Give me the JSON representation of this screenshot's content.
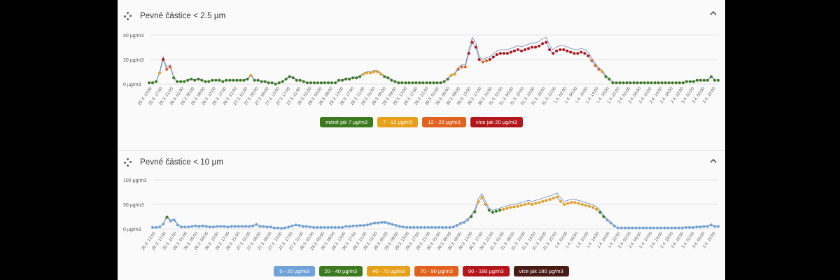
{
  "charts": [
    {
      "id": "pm25",
      "title": "Pevné částice < 2.5 µm",
      "icon": "scatter-dots-icon",
      "collapse_icon": "chevron-up-icon",
      "legend": [
        {
          "label": "méně jak 7 µg/m3",
          "color": "#3d7a1f"
        },
        {
          "label": "7 - 12 µg/m3",
          "color": "#e6a019"
        },
        {
          "label": "12 - 20 µg/m3",
          "color": "#e0621e"
        },
        {
          "label": "více jak 20 µg/m3",
          "color": "#b3171b"
        }
      ]
    },
    {
      "id": "pm10",
      "title": "Pevné částice < 10 µm",
      "icon": "scatter-dots-icon",
      "collapse_icon": "chevron-up-icon",
      "legend": [
        {
          "label": "0 - 20 µg/m3",
          "color": "#6fa3d8"
        },
        {
          "label": "20 - 40 µg/m3",
          "color": "#3d7a1f"
        },
        {
          "label": "40 - 70 µg/m3",
          "color": "#e6a019"
        },
        {
          "label": "70 - 90 µg/m3",
          "color": "#e0621e"
        },
        {
          "label": "90 - 180 µg/m3",
          "color": "#b3171b"
        },
        {
          "label": "více jak 180 µg/m3",
          "color": "#4a1a14"
        }
      ]
    }
  ],
  "chart_data": [
    {
      "type": "line",
      "title": "Pevné částice < 2.5 µm",
      "xlabel": "",
      "ylabel": "",
      "yticks": [
        "0 µg/m3",
        "20 µg/m3",
        "40 µg/m3"
      ],
      "ylim": [
        0,
        40
      ],
      "x_labels": [
        "25.3. 13:00",
        "25.3. 17:00",
        "25.3. 21:00",
        "26.3. 01:00",
        "26.3. 05:00",
        "26.3. 09:00",
        "26.3. 13:00",
        "26.3. 17:00",
        "26.3. 21:00",
        "27.3. 01:00",
        "27.3. 05:00",
        "27.3. 09:00",
        "27.3. 13:00",
        "27.3. 17:00",
        "27.3. 21:00",
        "28.3. 01:00",
        "28.3. 05:00",
        "28.3. 09:00",
        "28.3. 13:00",
        "28.3. 17:00",
        "28.3. 21:00",
        "29.3. 01:00",
        "29.3. 05:00",
        "29.3. 09:00",
        "29.3. 13:00",
        "29.3. 17:00",
        "29.3. 21:00",
        "30.3. 01:00",
        "30.3. 05:00",
        "30.3. 09:00",
        "30.3. 13:00",
        "30.3. 17:00",
        "30.3. 21:00",
        "31.3. 01:00",
        "31.3. 06:00",
        "31.3. 10:00",
        "31.3. 14:00",
        "31.3. 18:00",
        "31.3. 22:00",
        "1.4. 02:00",
        "1.4. 06:00",
        "1.4. 10:00",
        "1.4. 14:00",
        "1.4. 18:00",
        "1.4. 22:00",
        "2.4. 02:00",
        "2.4. 06:00",
        "2.4. 10:00",
        "2.4. 14:00",
        "2.4. 18:00",
        "2.4. 22:00",
        "3.4. 02:00",
        "3.4. 06:00",
        "3.4. 10:00"
      ],
      "series": [
        {
          "values": [
            1,
            1,
            2,
            9,
            20,
            12,
            14,
            5,
            2,
            2,
            2,
            3,
            4,
            3,
            4,
            3,
            2,
            2,
            3,
            3,
            3,
            2,
            3,
            3,
            3,
            3,
            3,
            3,
            4,
            7,
            3,
            3,
            2,
            2,
            1,
            1,
            0,
            1,
            2,
            4,
            6,
            5,
            3,
            3,
            2,
            1,
            1,
            1,
            1,
            1,
            1,
            1,
            1,
            1,
            3,
            3,
            4,
            4,
            5,
            5,
            6,
            8,
            9,
            9,
            10,
            10,
            8,
            6,
            5,
            3,
            2,
            1,
            1,
            1,
            1,
            1,
            1,
            1,
            1,
            1,
            1,
            1,
            1,
            1,
            2,
            4,
            7,
            8,
            12,
            14,
            14,
            25,
            34,
            30,
            20,
            18,
            19,
            20,
            22,
            24,
            25,
            25,
            25,
            26,
            27,
            28,
            27,
            28,
            29,
            30,
            30,
            31,
            33,
            34,
            28,
            25,
            27,
            28,
            28,
            27,
            26,
            25,
            25,
            26,
            25,
            23,
            19,
            15,
            12,
            10,
            6,
            4,
            1,
            1,
            1,
            1,
            1,
            1,
            1,
            1,
            1,
            1,
            1,
            1,
            1,
            1,
            1,
            1,
            1,
            1,
            1,
            1,
            1,
            2,
            2,
            2,
            3,
            3,
            3,
            3,
            6,
            3,
            3
          ]
        }
      ]
    },
    {
      "type": "line",
      "title": "Pevné částice < 10 µm",
      "xlabel": "",
      "ylabel": "",
      "yticks": [
        "0 µg/m3",
        "50 µg/m3",
        "100 µg/m3"
      ],
      "ylim": [
        0,
        100
      ],
      "x_labels": [
        "25.3. 13:00",
        "25.3. 17:00",
        "25.3. 21:00",
        "26.3. 01:00",
        "26.3. 05:00",
        "26.3. 09:00",
        "26.3. 13:00",
        "26.3. 17:00",
        "26.3. 21:00",
        "27.3. 01:00",
        "27.3. 05:00",
        "27.3. 09:00",
        "27.3. 13:00",
        "27.3. 17:00",
        "27.3. 21:00",
        "28.3. 01:00",
        "28.3. 05:00",
        "28.3. 09:00",
        "28.3. 13:00",
        "28.3. 17:00",
        "28.3. 21:00",
        "29.3. 01:00",
        "29.3. 05:00",
        "29.3. 09:00",
        "29.3. 13:00",
        "29.3. 17:00",
        "29.3. 21:00",
        "30.3. 01:00",
        "30.3. 05:00",
        "30.3. 09:00",
        "30.3. 13:00",
        "30.3. 17:00",
        "30.3. 21:00",
        "31.3. 01:00",
        "31.3. 06:00",
        "31.3. 10:00",
        "31.3. 14:00",
        "31.3. 18:00",
        "31.3. 22:00",
        "1.4. 02:00",
        "1.4. 06:00",
        "1.4. 10:00",
        "1.4. 14:00",
        "1.4. 18:00",
        "1.4. 22:00",
        "2.4. 02:00",
        "2.4. 06:00",
        "2.4. 10:00",
        "2.4. 14:00",
        "2.4. 18:00",
        "2.4. 22:00",
        "3.4. 02:00",
        "3.4. 06:00",
        "3.4. 10:00"
      ],
      "series": [
        {
          "values": [
            3,
            3,
            4,
            10,
            24,
            16,
            18,
            8,
            4,
            4,
            4,
            5,
            6,
            5,
            6,
            5,
            4,
            4,
            5,
            5,
            5,
            4,
            5,
            5,
            5,
            5,
            5,
            5,
            6,
            9,
            5,
            5,
            4,
            4,
            2,
            2,
            1,
            2,
            4,
            6,
            8,
            7,
            5,
            5,
            4,
            3,
            3,
            3,
            3,
            3,
            3,
            3,
            3,
            3,
            5,
            5,
            6,
            6,
            7,
            7,
            8,
            10,
            12,
            12,
            13,
            13,
            11,
            9,
            7,
            5,
            4,
            3,
            3,
            3,
            3,
            3,
            3,
            3,
            3,
            3,
            3,
            3,
            3,
            3,
            4,
            7,
            11,
            13,
            18,
            25,
            35,
            55,
            64,
            50,
            38,
            34,
            36,
            38,
            40,
            42,
            44,
            45,
            46,
            48,
            50,
            52,
            50,
            52,
            54,
            56,
            58,
            60,
            63,
            65,
            56,
            50,
            52,
            54,
            54,
            52,
            50,
            48,
            46,
            44,
            40,
            34,
            25,
            18,
            12,
            6,
            2,
            2,
            2,
            2,
            2,
            2,
            2,
            2,
            2,
            2,
            2,
            2,
            2,
            2,
            2,
            2,
            2,
            2,
            2,
            3,
            3,
            3,
            4,
            4,
            5,
            5,
            8,
            5,
            5
          ]
        }
      ]
    }
  ]
}
